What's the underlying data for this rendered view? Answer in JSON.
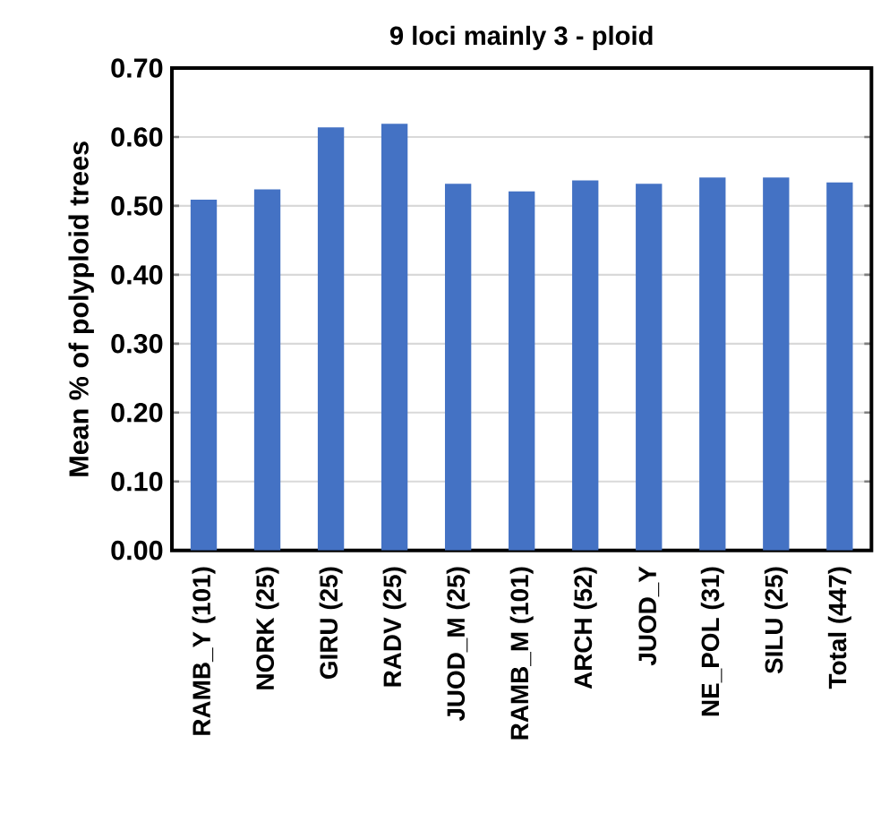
{
  "chart_data": {
    "type": "bar",
    "title": "9 loci mainly 3 - ploid",
    "ylabel": "Mean % of polyploid trees",
    "categories": [
      "RAMB_Y (101)",
      "NORK (25)",
      "GIRU (25)",
      "RADV (25)",
      "JUOD_M (25)",
      "RAMB_M (101)",
      "ARCH (52)",
      "JUOD_Y",
      "NE_POL (31)",
      "SILU (25)",
      "Total (447)"
    ],
    "values": [
      0.509,
      0.524,
      0.614,
      0.619,
      0.532,
      0.521,
      0.537,
      0.532,
      0.541,
      0.541,
      0.534
    ],
    "color": "#4472c4",
    "ylim": [
      0,
      0.7
    ],
    "yticks": [
      {
        "value": 0,
        "label": "0.00"
      },
      {
        "value": 0.1,
        "label": "0.10"
      },
      {
        "value": 0.2,
        "label": "0.20"
      },
      {
        "value": 0.3,
        "label": "0.30"
      },
      {
        "value": 0.4,
        "label": "0.40"
      },
      {
        "value": 0.5,
        "label": "0.50"
      },
      {
        "value": 0.6,
        "label": "0.60"
      },
      {
        "value": 0.7,
        "label": "0.70"
      }
    ],
    "grid": "y"
  }
}
